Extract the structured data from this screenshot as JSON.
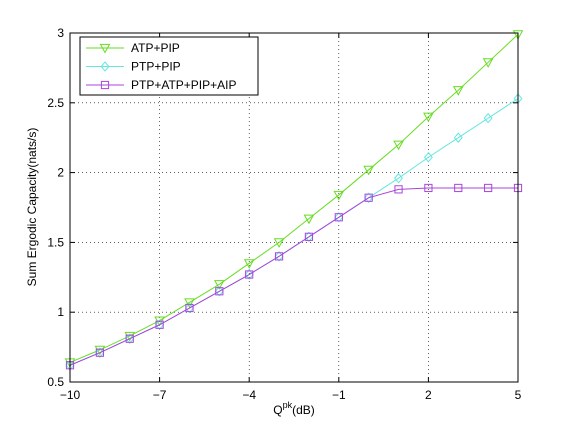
{
  "chart_data": {
    "type": "line",
    "title": "",
    "xlabel": "Q",
    "xlabel_superscript": "pk",
    "xlabel_suffix": "(dB)",
    "ylabel": "Sum Ergodic Capacity(nats/s)",
    "xlim": [
      -10,
      5
    ],
    "ylim": [
      0.5,
      3
    ],
    "xticks": [
      -10,
      -7,
      -4,
      -1,
      2,
      5
    ],
    "xtick_labels": [
      "−10",
      "−7",
      "−4",
      "−1",
      "2",
      "5"
    ],
    "yticks": [
      0.5,
      1,
      1.5,
      2,
      2.5,
      3
    ],
    "ytick_labels": [
      "0.5",
      "1",
      "1.5",
      "2",
      "2.5",
      "3"
    ],
    "grid": true,
    "legend_position": "top-left",
    "x": [
      -10,
      -9,
      -8,
      -7,
      -6,
      -5,
      -4,
      -3,
      -2,
      -1,
      0,
      1,
      2,
      3,
      4,
      5
    ],
    "series": [
      {
        "name": "ATP+PIP",
        "color": "#66dd22",
        "marker": "triangle-down",
        "values": [
          0.64,
          0.73,
          0.83,
          0.94,
          1.07,
          1.2,
          1.35,
          1.5,
          1.67,
          1.84,
          2.02,
          2.2,
          2.4,
          2.59,
          2.79,
          2.99
        ]
      },
      {
        "name": "PTP+PIP",
        "color": "#66e6e0",
        "marker": "diamond",
        "values": [
          0.62,
          0.71,
          0.81,
          0.91,
          1.03,
          1.15,
          1.27,
          1.4,
          1.54,
          1.68,
          1.82,
          1.96,
          2.11,
          2.25,
          2.39,
          2.53
        ]
      },
      {
        "name": "PTP+ATP+PIP+AIP",
        "color": "#aa44dd",
        "marker": "square",
        "values": [
          0.62,
          0.71,
          0.81,
          0.91,
          1.03,
          1.15,
          1.27,
          1.4,
          1.54,
          1.68,
          1.82,
          1.88,
          1.89,
          1.89,
          1.89,
          1.89
        ]
      }
    ]
  }
}
